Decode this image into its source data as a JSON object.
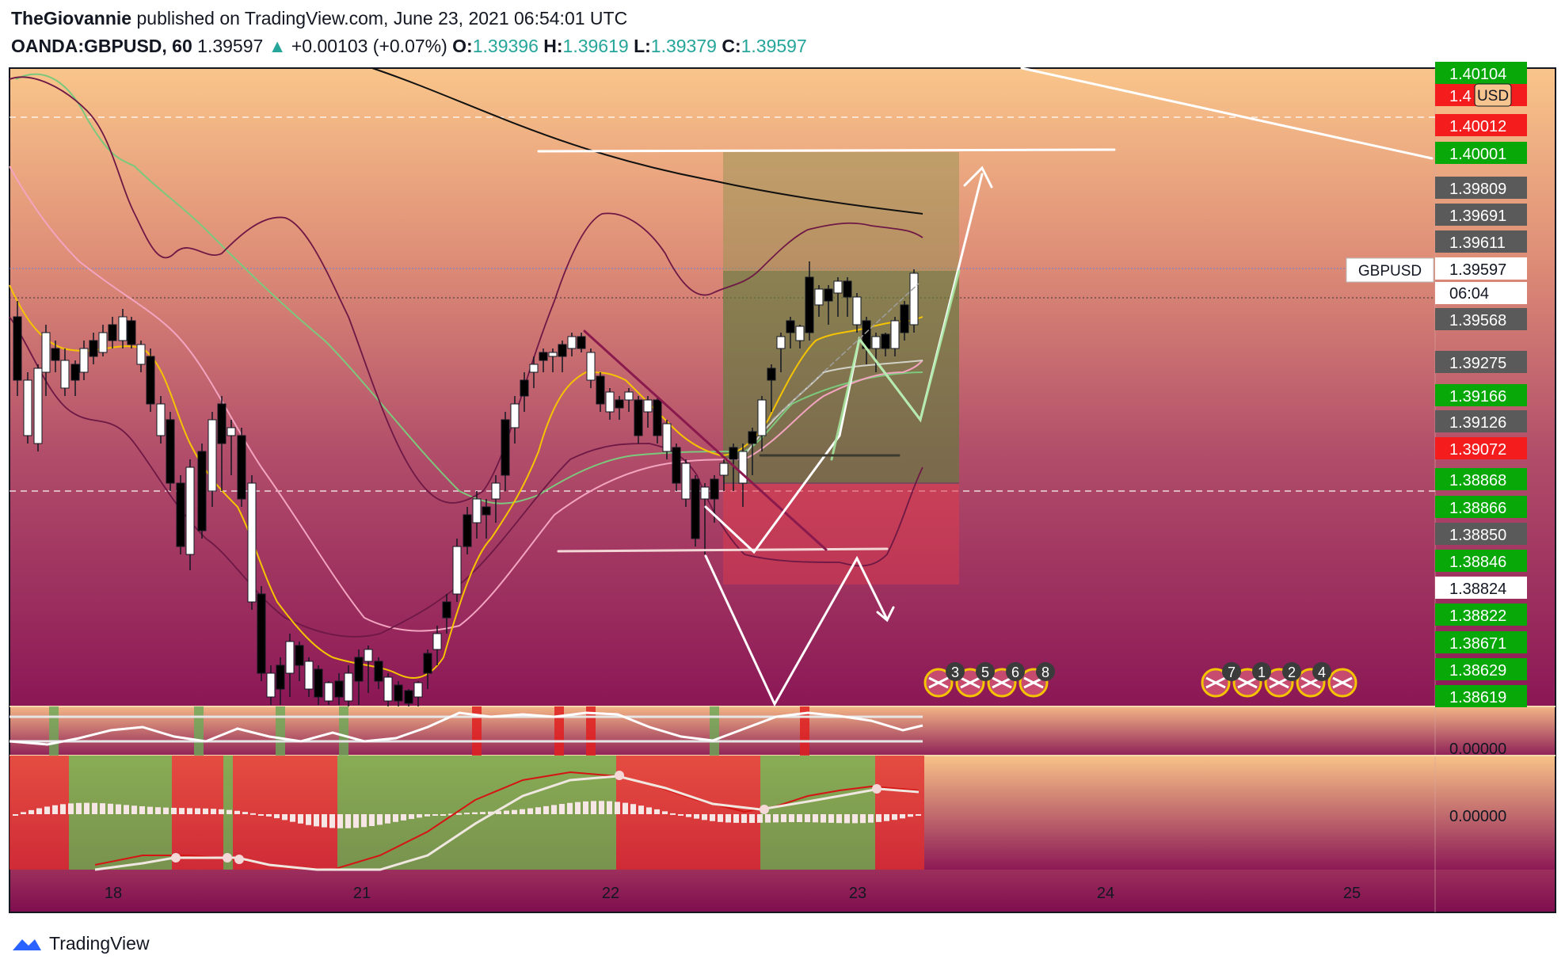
{
  "header": {
    "author": "TheGiovannie",
    "published": " published on TradingView.com, June 23, 2021 06:54:01 UTC",
    "symbol": "OANDA:GBPUSD, 60",
    "last": "1.39597",
    "change": "+0.00103 (+0.07%)",
    "open_label": "O:",
    "open": "1.39396",
    "high_label": "H:",
    "high": "1.39619",
    "low_label": "L:",
    "low": "1.39379",
    "close_label": "C:",
    "close": "1.39597"
  },
  "chart_data": {
    "type": "candlestick",
    "symbol": "GBPUSD",
    "currency": "USD",
    "countdown": "06:04",
    "x_ticks": [
      "18",
      "21",
      "22",
      "23",
      "24",
      "25"
    ],
    "y_range": [
      1.3859,
      1.4012
    ],
    "oscillator_value": "0.00000",
    "macd_value": "0.00000",
    "colors": {
      "bull": "#ffffff",
      "bear": "#000000",
      "green_tag": "#08a808",
      "red_tag": "#f41c1c",
      "gray_tag": "#5a5a5a"
    },
    "price_tags": [
      {
        "text": "1.40104",
        "bg": "#08a808"
      },
      {
        "text": "1.4",
        "bg": "#f41c1c"
      },
      {
        "text": "1.40012",
        "bg": "#f41c1c"
      },
      {
        "text": "1.40001",
        "bg": "#08a808"
      },
      {
        "text": "1.39809",
        "bg": "#5a5a5a"
      },
      {
        "text": "1.39691",
        "bg": "#5a5a5a"
      },
      {
        "text": "1.39611",
        "bg": "#5a5a5a"
      },
      {
        "text": "1.39597",
        "bg": "#ffffff"
      },
      {
        "text": "1.39568",
        "bg": "#5a5a5a"
      },
      {
        "text": "1.39275",
        "bg": "#5a5a5a"
      },
      {
        "text": "1.39166",
        "bg": "#08a808"
      },
      {
        "text": "1.39126",
        "bg": "#5a5a5a"
      },
      {
        "text": "1.39072",
        "bg": "#f41c1c"
      },
      {
        "text": "1.38868",
        "bg": "#08a808"
      },
      {
        "text": "1.38866",
        "bg": "#08a808"
      },
      {
        "text": "1.38850",
        "bg": "#5a5a5a"
      },
      {
        "text": "1.38846",
        "bg": "#08a808"
      },
      {
        "text": "1.38824",
        "bg": "#ffffff"
      },
      {
        "text": "1.38822",
        "bg": "#08a808"
      },
      {
        "text": "1.38671",
        "bg": "#08a808"
      },
      {
        "text": "1.38629",
        "bg": "#08a808"
      },
      {
        "text": "1.38619",
        "bg": "#08a808"
      }
    ],
    "event_badges_1": [
      "3",
      "5",
      "6",
      "8"
    ],
    "event_badges_2": [
      "7",
      "1",
      "2",
      "4"
    ]
  },
  "footer": {
    "brand": "TradingView"
  }
}
